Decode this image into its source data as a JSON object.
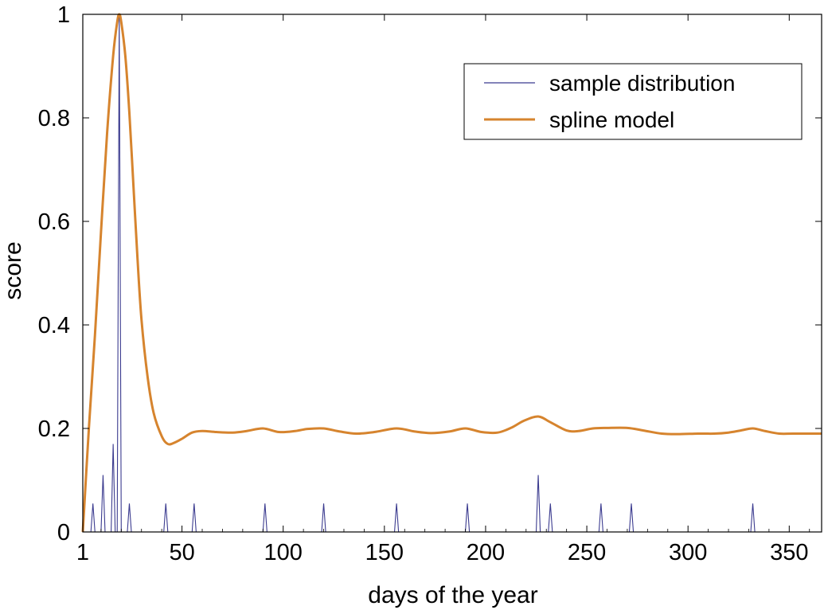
{
  "chart_data": {
    "type": "line",
    "xlabel": "days of the year",
    "ylabel": "score",
    "xlim": [
      1,
      366
    ],
    "ylim": [
      0,
      1
    ],
    "xticks": [
      1,
      50,
      100,
      150,
      200,
      250,
      300,
      350
    ],
    "xtick_labels": [
      "1",
      "50",
      "100",
      "150",
      "200",
      "250",
      "300",
      "350"
    ],
    "yticks": [
      0,
      0.2,
      0.4,
      0.6,
      0.8,
      1
    ],
    "ytick_labels": [
      "0",
      "0.2",
      "0.4",
      "0.6",
      "0.8",
      "1"
    ],
    "grid": false,
    "legend": {
      "position": "top-right",
      "entries": [
        "sample distribution",
        "spline model"
      ]
    },
    "colors": {
      "sample": "#3b3b8f",
      "spline": "#d6842e",
      "axis": "#000000"
    },
    "series": [
      {
        "name": "sample distribution",
        "style": "spikes",
        "spike_half_width_days": 1,
        "x": [
          6,
          11,
          16,
          19,
          24,
          42,
          56,
          91,
          120,
          156,
          191,
          226,
          232,
          257,
          272,
          332
        ],
        "values": [
          0.055,
          0.11,
          0.17,
          1.0,
          0.055,
          0.055,
          0.055,
          0.055,
          0.055,
          0.055,
          0.055,
          0.11,
          0.055,
          0.055,
          0.055,
          0.055
        ]
      },
      {
        "name": "spline model",
        "style": "smooth-line",
        "x": [
          1,
          4,
          7,
          10,
          13,
          16,
          18,
          19,
          20,
          22,
          24,
          26,
          28,
          30,
          33,
          36,
          40,
          43,
          46,
          50,
          55,
          60,
          67,
          75,
          82,
          90,
          98,
          106,
          112,
          120,
          128,
          136,
          145,
          156,
          165,
          173,
          182,
          190,
          198,
          206,
          213,
          219,
          226,
          232,
          240,
          246,
          253,
          260,
          270,
          278,
          287,
          295,
          305,
          313,
          320,
          326,
          332,
          338,
          345,
          352,
          366
        ],
        "values": [
          0.0,
          0.2,
          0.38,
          0.58,
          0.77,
          0.92,
          0.985,
          1.0,
          0.985,
          0.92,
          0.81,
          0.67,
          0.53,
          0.41,
          0.3,
          0.23,
          0.185,
          0.17,
          0.172,
          0.18,
          0.192,
          0.195,
          0.193,
          0.192,
          0.195,
          0.2,
          0.193,
          0.195,
          0.199,
          0.2,
          0.194,
          0.19,
          0.193,
          0.2,
          0.194,
          0.191,
          0.194,
          0.2,
          0.193,
          0.192,
          0.202,
          0.215,
          0.223,
          0.212,
          0.196,
          0.195,
          0.2,
          0.201,
          0.201,
          0.196,
          0.19,
          0.189,
          0.19,
          0.19,
          0.192,
          0.196,
          0.2,
          0.195,
          0.19,
          0.19,
          0.19
        ]
      }
    ]
  }
}
